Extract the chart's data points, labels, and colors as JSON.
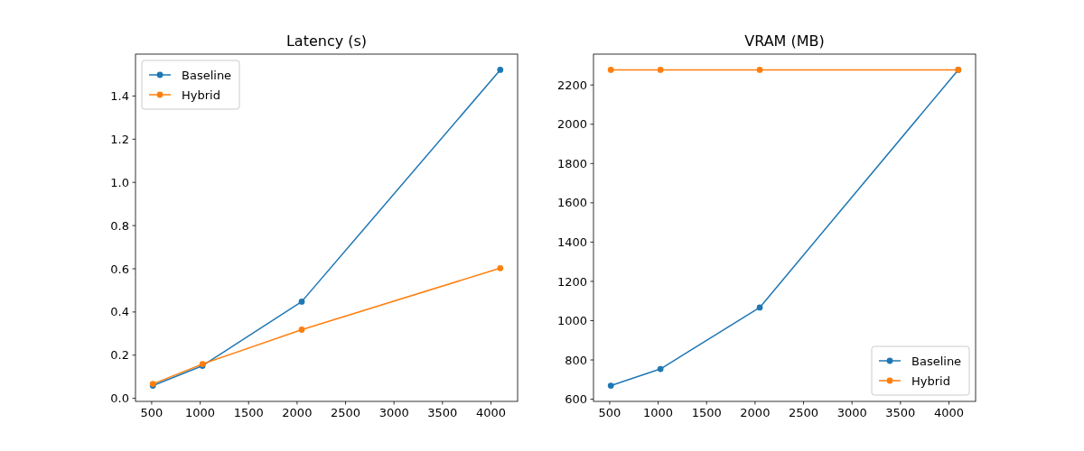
{
  "chart_data": [
    {
      "type": "line",
      "title": "Latency (s)",
      "x": [
        512,
        1024,
        2048,
        4096
      ],
      "xlim": [
        333,
        4275
      ],
      "xticks": [
        500,
        1000,
        1500,
        2000,
        2500,
        3000,
        3500,
        4000
      ],
      "ylim": [
        -0.014,
        1.594
      ],
      "yticks": [
        {
          "value": 0,
          "label": "0.0"
        },
        0.2,
        0.4,
        0.6,
        0.8,
        {
          "value": 1,
          "label": "1.0"
        },
        1.2,
        1.4
      ],
      "marker": "circle",
      "legend": "top left",
      "grid": false,
      "series": [
        {
          "name": "Baseline",
          "color": "#1f77b4",
          "values": [
            0.059,
            0.151,
            0.448,
            1.521
          ]
        },
        {
          "name": "Hybrid",
          "color": "#ff7f0e",
          "values": [
            0.067,
            0.159,
            0.318,
            0.603
          ]
        }
      ]
    },
    {
      "type": "line",
      "title": "VRAM (MB)",
      "x": [
        512,
        1024,
        2048,
        4096
      ],
      "xlim": [
        333,
        4275
      ],
      "xticks": [
        500,
        1000,
        1500,
        2000,
        2500,
        3000,
        3500,
        4000
      ],
      "ylim": [
        589,
        2357
      ],
      "yticks": [
        600,
        800,
        1000,
        1200,
        1400,
        1600,
        1800,
        2000,
        2200
      ],
      "marker": "circle",
      "legend": "bottom right",
      "grid": false,
      "series": [
        {
          "name": "Baseline",
          "color": "#1f77b4",
          "values": [
            669,
            754,
            1067,
            2277
          ]
        },
        {
          "name": "Hybrid",
          "color": "#ff7f0e",
          "values": [
            2277,
            2277,
            2277,
            2277
          ]
        }
      ]
    }
  ]
}
